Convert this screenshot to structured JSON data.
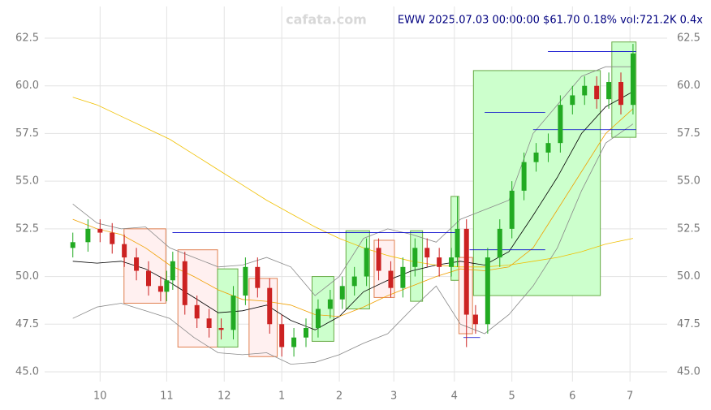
{
  "chart_data": {
    "type": "candlestick",
    "title": "EWW 2025.07.03 00:00:00 $61.70 0.18% vol:721.2K 0.4x",
    "watermark": "cafata.com",
    "x": [
      0,
      5,
      9,
      13,
      17,
      21,
      25,
      29,
      31,
      33,
      37,
      41,
      45,
      49,
      53,
      57,
      61,
      65,
      69,
      73,
      77,
      81,
      85,
      89,
      93,
      97,
      101,
      105,
      109,
      113,
      117,
      121,
      125,
      127,
      130,
      133,
      137,
      141,
      145,
      149,
      153,
      157,
      161,
      165,
      169,
      173,
      177,
      181,
      185
    ],
    "open": [
      51.5,
      51.8,
      52.5,
      52.3,
      51.7,
      51,
      50.3,
      49.5,
      49.2,
      49.8,
      50.8,
      48.5,
      47.8,
      47.3,
      47.2,
      49,
      50.5,
      49.4,
      47.5,
      46.3,
      46.8,
      47.3,
      48.3,
      48.8,
      49.5,
      50,
      51.5,
      50.3,
      49.4,
      50.5,
      51.5,
      51,
      50.5,
      51,
      52.5,
      48,
      47.5,
      51,
      52.5,
      54.5,
      56,
      56.5,
      57,
      59,
      59.5,
      60,
      59.3,
      60.2,
      59
    ],
    "high": [
      52.3,
      53.0,
      53.0,
      52.8,
      52.2,
      51.5,
      50.8,
      50.0,
      50.3,
      51.3,
      51.3,
      49.0,
      48.3,
      47.8,
      49.5,
      51.0,
      51.0,
      49.9,
      48.0,
      47.3,
      47.8,
      48.8,
      49.3,
      50.0,
      50.5,
      52.0,
      52.0,
      50.8,
      51.0,
      52.0,
      52.0,
      51.5,
      51.5,
      54.2,
      53.0,
      48.5,
      51.5,
      53.0,
      55.0,
      56.5,
      57.0,
      57.5,
      59.5,
      60.0,
      60.5,
      60.5,
      60.7,
      60.7,
      62.2
    ],
    "low": [
      51.0,
      51.3,
      51.8,
      51.2,
      50.5,
      49.8,
      49.0,
      48.7,
      48.7,
      49.3,
      48.0,
      47.3,
      46.8,
      46.7,
      46.7,
      48.5,
      48.9,
      47.0,
      45.8,
      45.8,
      46.3,
      46.8,
      47.8,
      48.3,
      49.0,
      49.5,
      49.8,
      48.9,
      48.9,
      50.0,
      50.5,
      50.0,
      50.0,
      50.5,
      46.3,
      47.0,
      47.0,
      50.5,
      52.0,
      54.0,
      55.5,
      56.0,
      56.5,
      58.5,
      59.0,
      58.8,
      58.8,
      58.5,
      58.5
    ],
    "close": [
      51.8,
      52.5,
      52.3,
      51.7,
      51,
      50.3,
      49.5,
      49.2,
      49.8,
      50.8,
      48.5,
      47.8,
      47.3,
      47.2,
      49,
      50.5,
      49.4,
      47.5,
      46.3,
      46.8,
      47.3,
      48.3,
      48.8,
      49.5,
      50,
      51.5,
      50.3,
      49.4,
      50.5,
      51.5,
      51,
      50.5,
      51,
      52.5,
      48,
      47.5,
      51,
      52.5,
      54.5,
      56,
      56.5,
      57,
      59,
      59.5,
      60,
      59.3,
      60.2,
      59,
      61.7
    ],
    "colors": {
      "up": "#22aa22",
      "down": "#cc2222"
    },
    "lines": [
      {
        "color": "#000000",
        "x": [
          0,
          8,
          16,
          24,
          32,
          40,
          48,
          56,
          64,
          72,
          80,
          88,
          96,
          104,
          112,
          120,
          128,
          136,
          144,
          152,
          160,
          168,
          176,
          185
        ],
        "values": [
          50.8,
          50.7,
          50.8,
          50.4,
          49.7,
          48.9,
          48.1,
          48.2,
          48.5,
          47.7,
          47.2,
          47.9,
          49.2,
          49.8,
          50.3,
          50.6,
          50.8,
          50.6,
          51.3,
          53.2,
          55.2,
          57.5,
          58.9,
          59.7
        ]
      },
      {
        "color": "#f0c000",
        "x": [
          0,
          8,
          16,
          24,
          32,
          40,
          48,
          56,
          64,
          72,
          80,
          88,
          96,
          104,
          112,
          120,
          128,
          136,
          144,
          152,
          160,
          168,
          176,
          185
        ],
        "values": [
          59.4,
          59.0,
          58.4,
          57.8,
          57.2,
          56.4,
          55.6,
          54.8,
          54.0,
          53.3,
          52.6,
          52.0,
          51.5,
          51.1,
          50.8,
          50.6,
          50.5,
          50.5,
          50.6,
          50.8,
          51.0,
          51.3,
          51.7,
          52.0
        ]
      },
      {
        "color": "#f0a000",
        "x": [
          0,
          8,
          16,
          24,
          32,
          40,
          48,
          56,
          64,
          72,
          80,
          88,
          96,
          104,
          112,
          120,
          128,
          136,
          144,
          152,
          160,
          168,
          176,
          185
        ],
        "values": [
          53,
          52.5,
          52.2,
          51.5,
          50.6,
          50,
          49.3,
          48.8,
          48.7,
          48.5,
          48,
          47.9,
          48.4,
          49,
          49.5,
          50,
          50.4,
          50.3,
          50.5,
          51.5,
          53.5,
          55.5,
          57.5,
          58.8
        ]
      },
      {
        "color": "#888888",
        "x": [
          0,
          8,
          16,
          24,
          32,
          40,
          48,
          56,
          64,
          72,
          80,
          88,
          96,
          104,
          112,
          120,
          128,
          136,
          144,
          152,
          160,
          168,
          176,
          185
        ],
        "values": [
          53.8,
          52.8,
          52.5,
          52.6,
          51.5,
          51.0,
          50.5,
          50.6,
          51.0,
          50.5,
          49.0,
          50.0,
          52.0,
          52.5,
          52.2,
          51.8,
          53.0,
          53.5,
          54.0,
          57.5,
          59.0,
          60.5,
          61.0,
          61.0
        ]
      },
      {
        "color": "#888888",
        "x": [
          0,
          8,
          16,
          24,
          32,
          40,
          48,
          56,
          64,
          72,
          80,
          88,
          96,
          104,
          112,
          120,
          128,
          136,
          144,
          152,
          160,
          168,
          176,
          185
        ],
        "values": [
          47.8,
          48.4,
          48.6,
          48.2,
          47.8,
          46.8,
          46.0,
          45.9,
          46.0,
          45.4,
          45.5,
          45.9,
          46.5,
          47.0,
          48.3,
          49.5,
          47.5,
          47.0,
          48.0,
          49.5,
          51.5,
          54.5,
          57.0,
          58.0
        ]
      }
    ],
    "boxes": [
      {
        "x0": 16.9,
        "x1": 30.7,
        "low": 48.6,
        "high": 52.5,
        "color": "red"
      },
      {
        "x0": 34.7,
        "x1": 47.8,
        "low": 46.3,
        "high": 51.4,
        "color": "red"
      },
      {
        "x0": 47.8,
        "x1": 54.5,
        "low": 46.3,
        "high": 50.4,
        "color": "green"
      },
      {
        "x0": 58.2,
        "x1": 67.5,
        "low": 45.8,
        "high": 49.9,
        "color": "red"
      },
      {
        "x0": 79,
        "x1": 86.2,
        "low": 46.6,
        "high": 50,
        "color": "green"
      },
      {
        "x0": 90.2,
        "x1": 98,
        "low": 48.3,
        "high": 52.4,
        "color": "green"
      },
      {
        "x0": 99.5,
        "x1": 106.2,
        "low": 48.9,
        "high": 51.9,
        "color": "red"
      },
      {
        "x0": 111.5,
        "x1": 115.5,
        "low": 48.7,
        "high": 52.4,
        "color": "green"
      },
      {
        "x0": 124.9,
        "x1": 127.5,
        "low": 49.8,
        "high": 54.2,
        "color": "green"
      },
      {
        "x0": 127.5,
        "x1": 132,
        "low": 47,
        "high": 51,
        "color": "red"
      },
      {
        "x0": 132.3,
        "x1": 174.2,
        "low": 49,
        "high": 60.8,
        "color": "green"
      },
      {
        "x0": 178,
        "x1": 186,
        "low": 57.3,
        "high": 62.3,
        "color": "green"
      }
    ],
    "levels": [
      {
        "x0": 32.9,
        "x1": 127.5,
        "y": 52.3
      },
      {
        "x0": 156.9,
        "x1": 186,
        "y": 61.8
      },
      {
        "x0": 152,
        "x1": 186,
        "y": 57.7
      },
      {
        "x0": 136,
        "x1": 156,
        "y": 58.6
      },
      {
        "x0": 131,
        "x1": 156,
        "y": 51.4
      },
      {
        "x0": 129,
        "x1": 134.5,
        "y": 46.8
      }
    ],
    "xlim": [
      -1,
      187.7
    ],
    "ylim": [
      45,
      62.5
    ],
    "xticks": [
      {
        "value": 9,
        "label": "10"
      },
      {
        "value": 31,
        "label": "11"
      },
      {
        "value": 50,
        "label": "12"
      },
      {
        "value": 69,
        "label": "1"
      },
      {
        "value": 88,
        "label": "2"
      },
      {
        "value": 106,
        "label": "3"
      },
      {
        "value": 126,
        "label": "4"
      },
      {
        "value": 145,
        "label": "5"
      },
      {
        "value": 165,
        "label": "6"
      },
      {
        "value": 184,
        "label": "7"
      }
    ],
    "yticks": [
      {
        "value": 45,
        "label": "45.0"
      },
      47.5,
      {
        "value": 50,
        "label": "50.0"
      },
      52.5,
      {
        "value": 55,
        "label": "55.0"
      },
      57.5,
      {
        "value": 60,
        "label": "60.0"
      },
      62.5
    ],
    "grid": true
  }
}
